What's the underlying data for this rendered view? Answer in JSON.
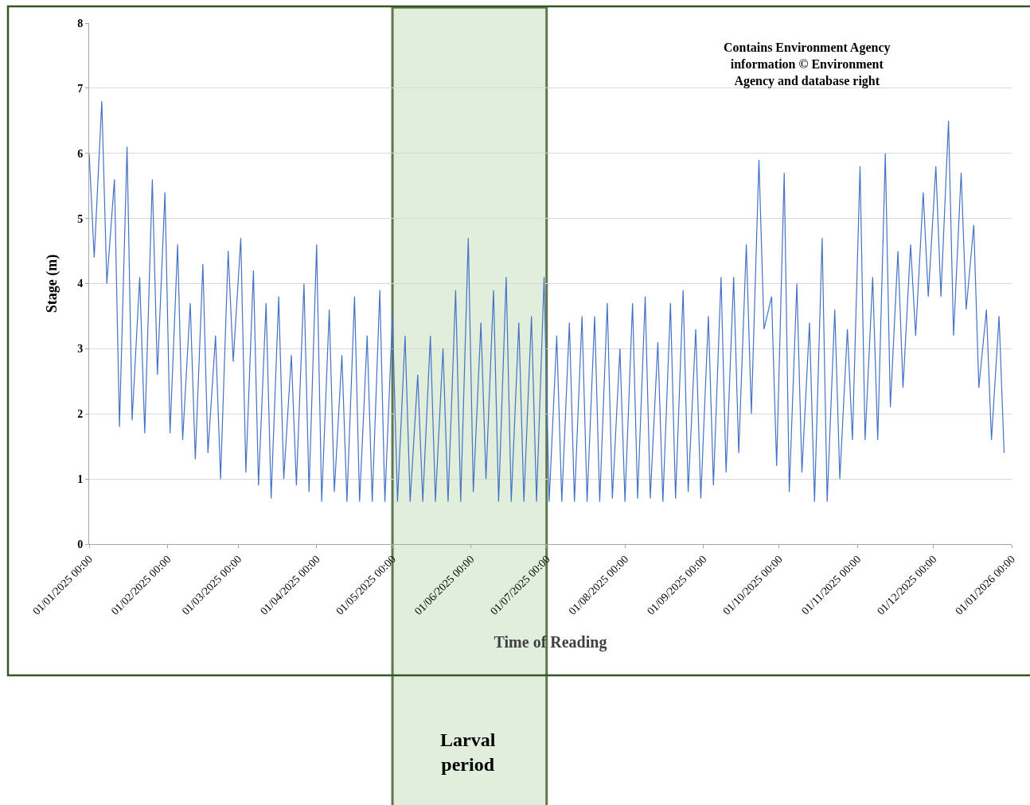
{
  "chart_data": {
    "type": "line",
    "xlabel": "Time of Reading",
    "ylabel": "Stage (m)",
    "annotations": [
      "Contains Environment Agency information © Environment Agency and database right"
    ],
    "series": [
      {
        "color": "#4472c4",
        "x": [
          "2025-01-01",
          "2025-01-03",
          "2025-01-06",
          "2025-01-08",
          "2025-01-11",
          "2025-01-13",
          "2025-01-16",
          "2025-01-18",
          "2025-01-21",
          "2025-01-23",
          "2025-01-26",
          "2025-01-28",
          "2025-01-31",
          "2025-02-02",
          "2025-02-05",
          "2025-02-07",
          "2025-02-10",
          "2025-02-12",
          "2025-02-15",
          "2025-02-17",
          "2025-02-20",
          "2025-02-22",
          "2025-02-25",
          "2025-02-27",
          "2025-03-02",
          "2025-03-04",
          "2025-03-07",
          "2025-03-09",
          "2025-03-12",
          "2025-03-14",
          "2025-03-17",
          "2025-03-19",
          "2025-03-22",
          "2025-03-24",
          "2025-03-27",
          "2025-03-29",
          "2025-04-01",
          "2025-04-03",
          "2025-04-06",
          "2025-04-08",
          "2025-04-11",
          "2025-04-13",
          "2025-04-16",
          "2025-04-18",
          "2025-04-21",
          "2025-04-23",
          "2025-04-26",
          "2025-04-28",
          "2025-05-01",
          "2025-05-03",
          "2025-05-06",
          "2025-05-08",
          "2025-05-11",
          "2025-05-13",
          "2025-05-16",
          "2025-05-18",
          "2025-05-21",
          "2025-05-23",
          "2025-05-26",
          "2025-05-28",
          "2025-05-31",
          "2025-06-02",
          "2025-06-05",
          "2025-06-07",
          "2025-06-10",
          "2025-06-12",
          "2025-06-15",
          "2025-06-17",
          "2025-06-20",
          "2025-06-22",
          "2025-06-25",
          "2025-06-27",
          "2025-06-30",
          "2025-07-02",
          "2025-07-05",
          "2025-07-07",
          "2025-07-10",
          "2025-07-12",
          "2025-07-15",
          "2025-07-17",
          "2025-07-20",
          "2025-07-22",
          "2025-07-25",
          "2025-07-27",
          "2025-07-30",
          "2025-08-01",
          "2025-08-04",
          "2025-08-06",
          "2025-08-09",
          "2025-08-11",
          "2025-08-14",
          "2025-08-16",
          "2025-08-19",
          "2025-08-21",
          "2025-08-24",
          "2025-08-26",
          "2025-08-29",
          "2025-08-31",
          "2025-09-03",
          "2025-09-05",
          "2025-09-08",
          "2025-09-10",
          "2025-09-13",
          "2025-09-15",
          "2025-09-18",
          "2025-09-20",
          "2025-09-23",
          "2025-09-25",
          "2025-09-28",
          "2025-09-30",
          "2025-10-03",
          "2025-10-05",
          "2025-10-08",
          "2025-10-10",
          "2025-10-13",
          "2025-10-15",
          "2025-10-18",
          "2025-10-20",
          "2025-10-23",
          "2025-10-25",
          "2025-10-28",
          "2025-10-30",
          "2025-11-02",
          "2025-11-04",
          "2025-11-07",
          "2025-11-09",
          "2025-11-12",
          "2025-11-14",
          "2025-11-17",
          "2025-11-19",
          "2025-11-22",
          "2025-11-24",
          "2025-11-27",
          "2025-11-29",
          "2025-12-02",
          "2025-12-04",
          "2025-12-07",
          "2025-12-09",
          "2025-12-12",
          "2025-12-14",
          "2025-12-17",
          "2025-12-19",
          "2025-12-22",
          "2025-12-24",
          "2025-12-27",
          "2025-12-29"
        ],
        "values": [
          6.0,
          4.4,
          6.8,
          4.0,
          5.6,
          1.8,
          6.1,
          1.9,
          4.1,
          1.7,
          5.6,
          2.6,
          5.4,
          1.7,
          4.6,
          1.6,
          3.7,
          1.3,
          4.3,
          1.4,
          3.2,
          1.0,
          4.5,
          2.8,
          4.7,
          1.1,
          4.2,
          0.9,
          3.7,
          0.7,
          3.8,
          1.0,
          2.9,
          0.9,
          4.0,
          0.8,
          4.6,
          0.65,
          3.6,
          0.8,
          2.9,
          0.65,
          3.8,
          0.65,
          3.2,
          0.65,
          3.9,
          0.65,
          3.5,
          0.65,
          3.2,
          0.65,
          2.6,
          0.65,
          3.2,
          0.65,
          3.0,
          0.65,
          3.9,
          0.65,
          4.7,
          0.8,
          3.4,
          1.0,
          3.9,
          0.65,
          4.1,
          0.65,
          3.4,
          0.65,
          3.5,
          0.65,
          4.1,
          0.65,
          3.2,
          0.65,
          3.4,
          0.65,
          3.5,
          0.65,
          3.5,
          0.65,
          3.7,
          0.7,
          3.0,
          0.65,
          3.7,
          0.7,
          3.8,
          0.7,
          3.1,
          0.65,
          3.7,
          0.7,
          3.9,
          0.8,
          3.3,
          0.7,
          3.5,
          0.9,
          4.1,
          1.1,
          4.1,
          1.4,
          4.6,
          2.0,
          5.9,
          3.3,
          3.8,
          1.2,
          5.7,
          0.8,
          4.0,
          1.1,
          3.4,
          0.65,
          4.7,
          0.65,
          3.6,
          1.0,
          3.3,
          1.6,
          5.8,
          1.6,
          4.1,
          1.6,
          6.0,
          2.1,
          4.5,
          2.4,
          4.6,
          3.2,
          5.4,
          3.8,
          5.8,
          3.8,
          6.5,
          3.2,
          5.7,
          3.6,
          4.9,
          2.4,
          3.6,
          1.6,
          3.5,
          1.4
        ]
      }
    ],
    "xlim": [
      "2025-01-01",
      "2026-01-01"
    ],
    "xticks": [
      {
        "value": "2025-01-01",
        "label": "01/01/2025 00:00"
      },
      {
        "value": "2025-02-01",
        "label": "01/02/2025 00:00"
      },
      {
        "value": "2025-03-01",
        "label": "01/03/2025 00:00"
      },
      {
        "value": "2025-04-01",
        "label": "01/04/2025 00:00"
      },
      {
        "value": "2025-05-01",
        "label": "01/05/2025 00:00"
      },
      {
        "value": "2025-06-01",
        "label": "01/06/2025 00:00"
      },
      {
        "value": "2025-07-01",
        "label": "01/07/2025 00:00"
      },
      {
        "value": "2025-08-01",
        "label": "01/08/2025 00:00"
      },
      {
        "value": "2025-09-01",
        "label": "01/09/2025 00:00"
      },
      {
        "value": "2025-10-01",
        "label": "01/10/2025 00:00"
      },
      {
        "value": "2025-11-01",
        "label": "01/11/2025 00:00"
      },
      {
        "value": "2025-12-01",
        "label": "01/12/2025 00:00"
      },
      {
        "value": "2026-01-01",
        "label": "01/01/2026 00:00"
      }
    ],
    "ylim": [
      0,
      8
    ],
    "yticks": [
      0,
      1,
      2,
      3,
      4,
      5,
      6,
      7,
      8
    ],
    "grid": "y",
    "marker": "none",
    "line_style": "solid",
    "bands": [
      {
        "axis": "x",
        "from": "2025-05-01",
        "to": "2025-07-01",
        "label": "Larval period",
        "color": "#d9ead3"
      }
    ]
  }
}
